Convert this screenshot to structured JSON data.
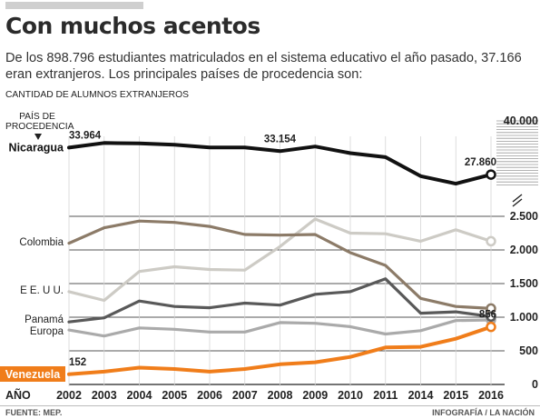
{
  "header": {
    "title": "Con muchos acentos",
    "subtitle": "De los 898.796 estudiantes matriculados en el sistema educativo el año pasado, 37.166 eran extranjeros. Los principales países de procedencia son:",
    "ylabel": "CANTIDAD DE ALUMNOS EXTRANJEROS",
    "country_header": "PAÍS DE PROCEDENCIA"
  },
  "footer": {
    "source": "FUENTE: MEP.",
    "credit": "INFOGRAFÍA / LA NACIÓN"
  },
  "colors": {
    "Nicaragua": "#111111",
    "Colombia": "#8c7b68",
    "EEUU": "#cdcbc5",
    "Panama": "#595959",
    "Europa": "#aaaaaa",
    "Venezuela": "#f07d1a"
  },
  "chart_data": {
    "type": "line",
    "xlabel": "AÑO",
    "x": [
      "2002",
      "2003",
      "2004",
      "2005",
      "2006",
      "2007",
      "2008",
      "2009",
      "2010",
      "2011",
      "2014",
      "2015",
      "2016"
    ],
    "y_axis": {
      "broken": true,
      "lower_range": [
        0,
        2500
      ],
      "lower_ticks": [
        0,
        500,
        1000,
        1500,
        2000,
        2500
      ],
      "lower_tick_labels": [
        "0",
        "500",
        "1.000",
        "1.500",
        "2.000",
        "2.500"
      ],
      "upper_tick": 40000,
      "upper_tick_label": "40.000"
    },
    "grid": "horizontal",
    "series": [
      {
        "name": "Nicaragua",
        "values": [
          33964,
          35000,
          34900,
          34600,
          34000,
          34000,
          33154,
          34200,
          32700,
          31800,
          27500,
          25800,
          27860
        ]
      },
      {
        "name": "Colombia",
        "values": [
          2100,
          2330,
          2430,
          2410,
          2350,
          2230,
          2220,
          2230,
          1960,
          1770,
          1280,
          1160,
          1130
        ]
      },
      {
        "name": "E E. U U.",
        "values": [
          1380,
          1250,
          1680,
          1750,
          1710,
          1700,
          2050,
          2460,
          2250,
          2240,
          2130,
          2300,
          2130
        ]
      },
      {
        "name": "Panamá",
        "values": [
          930,
          990,
          1240,
          1160,
          1140,
          1210,
          1180,
          1340,
          1380,
          1570,
          1060,
          1080,
          1010
        ]
      },
      {
        "name": "Europa",
        "values": [
          810,
          720,
          840,
          820,
          780,
          780,
          920,
          910,
          860,
          750,
          800,
          950,
          960
        ]
      },
      {
        "name": "Venezuela",
        "values": [
          152,
          190,
          250,
          230,
          190,
          230,
          300,
          330,
          410,
          550,
          560,
          680,
          856
        ]
      }
    ],
    "data_labels": [
      {
        "series": "Nicaragua",
        "x": "2002",
        "text": "33.964"
      },
      {
        "series": "Nicaragua",
        "x": "2008",
        "text": "33.154"
      },
      {
        "series": "Nicaragua",
        "x": "2016",
        "text": "27.860"
      },
      {
        "series": "Venezuela",
        "x": "2002",
        "text": "152"
      },
      {
        "series": "Venezuela",
        "x": "2016",
        "text": "856"
      }
    ],
    "series_labels": {
      "Nicaragua": "Nicaragua",
      "Colombia": "Colombia",
      "EEUU": "E E. U U.",
      "Panama": "Panamá",
      "Europa": "Europa",
      "Venezuela": "Venezuela"
    }
  }
}
